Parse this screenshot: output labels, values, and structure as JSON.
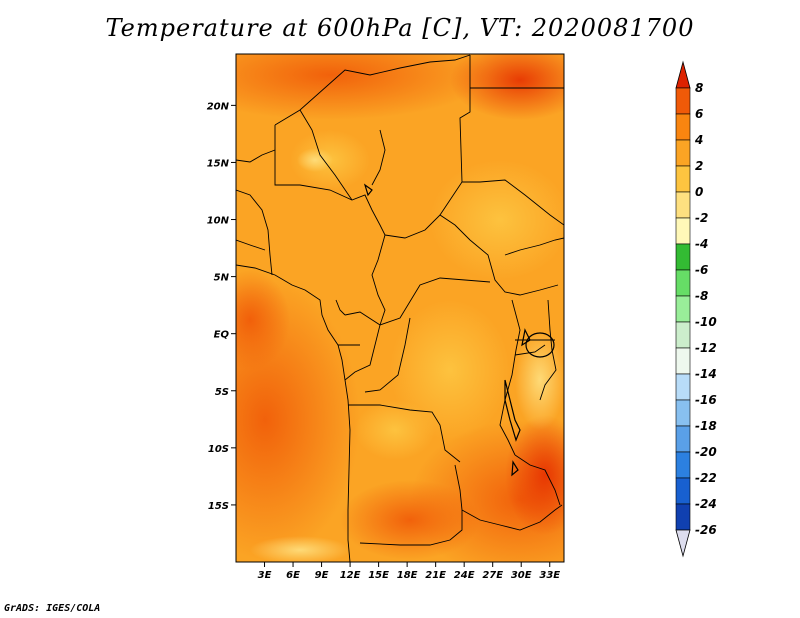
{
  "title": "Temperature at 600hPa [C], VT: 2020081700",
  "credit": "GrADS: IGES/COLA",
  "map": {
    "lon_range": [
      0,
      34.5
    ],
    "lat_range": [
      -20,
      24.5
    ],
    "lat_ticks": [
      {
        "value": 20,
        "label": "20N"
      },
      {
        "value": 15,
        "label": "15N"
      },
      {
        "value": 10,
        "label": "10N"
      },
      {
        "value": 5,
        "label": "5N"
      },
      {
        "value": 0,
        "label": "EQ"
      },
      {
        "value": -5,
        "label": "5S"
      },
      {
        "value": -10,
        "label": "10S"
      },
      {
        "value": -15,
        "label": "15S"
      }
    ],
    "lon_ticks": [
      {
        "value": 3,
        "label": "3E"
      },
      {
        "value": 6,
        "label": "6E"
      },
      {
        "value": 9,
        "label": "9E"
      },
      {
        "value": 12,
        "label": "12E"
      },
      {
        "value": 15,
        "label": "15E"
      },
      {
        "value": 18,
        "label": "18E"
      },
      {
        "value": 21,
        "label": "21E"
      },
      {
        "value": 24,
        "label": "24E"
      },
      {
        "value": 27,
        "label": "27E"
      },
      {
        "value": 30,
        "label": "30E"
      },
      {
        "value": 33,
        "label": "33E"
      }
    ]
  },
  "colorbar": {
    "labels": [
      "8",
      "6",
      "4",
      "2",
      "0",
      "-2",
      "-4",
      "-6",
      "-8",
      "-10",
      "-12",
      "-14",
      "-16",
      "-18",
      "-20",
      "-22",
      "-24",
      "-26"
    ],
    "colors": [
      "#dd2200",
      "#f05a08",
      "#f98510",
      "#fba424",
      "#fdc440",
      "#fee080",
      "#fff8b8",
      "#33bb33",
      "#66dd66",
      "#99ee99",
      "#cceecc",
      "#eef8ee",
      "#b8dcf8",
      "#88c0f0",
      "#5aa0e8",
      "#2c80e0",
      "#1860d0",
      "#1040b0",
      "#0a2890",
      "#101060",
      "#ddddee"
    ]
  }
}
